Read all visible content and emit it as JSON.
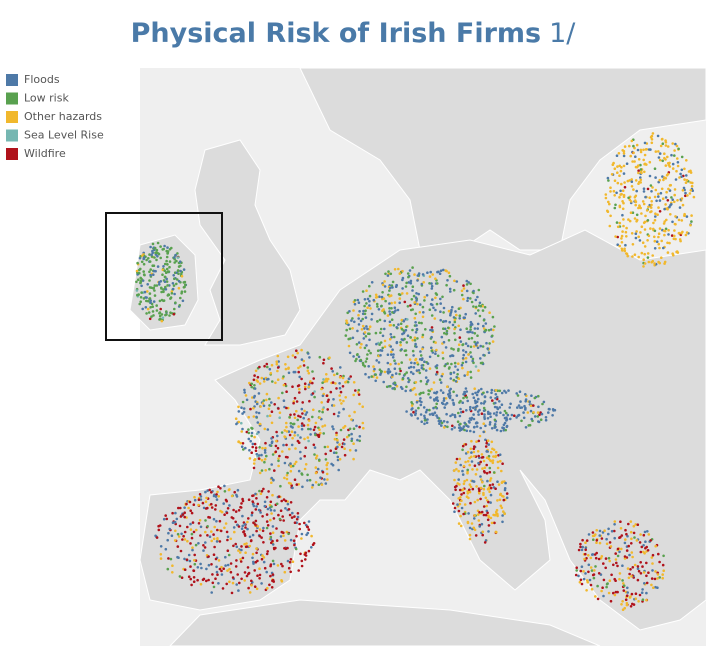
{
  "title": "Physical Risk of Irish Firms",
  "title_note": "1/",
  "legend": [
    {
      "name": "Floods",
      "color": "#4e79a7"
    },
    {
      "name": "Low risk",
      "color": "#59a14f"
    },
    {
      "name": "Other hazards",
      "color": "#f1b82d"
    },
    {
      "name": "Sea Level Rise",
      "color": "#76b7b2"
    },
    {
      "name": "Wildfire",
      "color": "#b0121b"
    }
  ]
}
